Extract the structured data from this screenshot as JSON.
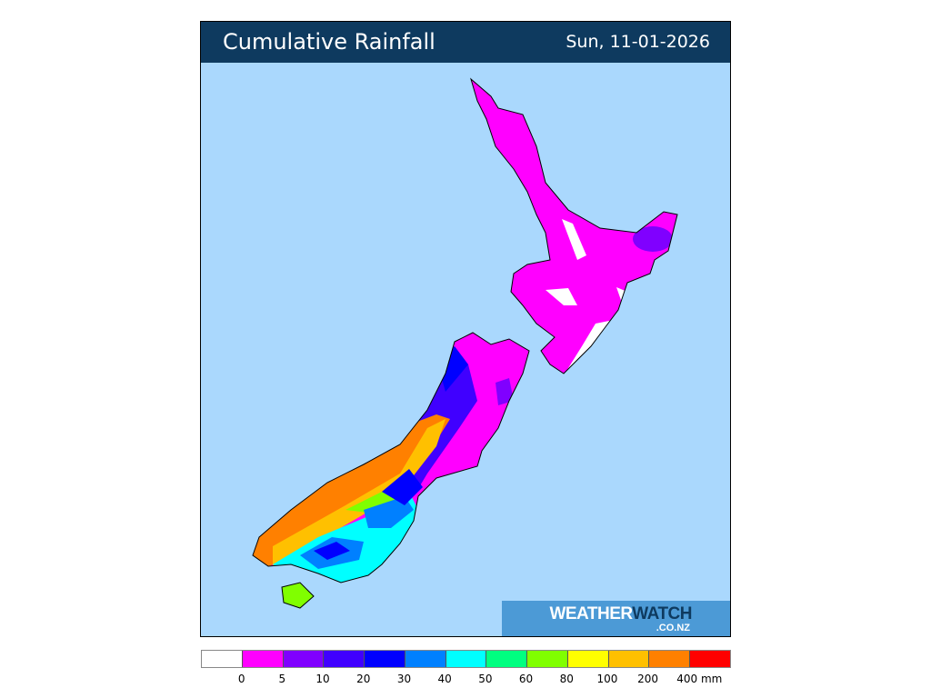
{
  "header": {
    "title": "Cumulative Rainfall",
    "date": "Sun, 11-01-2026"
  },
  "logo": {
    "main_light": "WEATHER",
    "main_dark": "WATCH",
    "domain": ".CO.NZ"
  },
  "legend": {
    "colors": [
      "#ffffff",
      "#ff00ff",
      "#8000ff",
      "#4000ff",
      "#0000ff",
      "#0080ff",
      "#00ffff",
      "#00ff80",
      "#80ff00",
      "#ffff00",
      "#ffc000",
      "#ff8000",
      "#ff0000"
    ],
    "labels": [
      "0",
      "5",
      "10",
      "20",
      "30",
      "40",
      "50",
      "60",
      "80",
      "100",
      "200",
      "400 mm"
    ],
    "unit": "mm"
  },
  "colors": {
    "sea": "#aad8fd",
    "header": "#0e3a5f",
    "logo_bg": "#4c9ad6"
  }
}
